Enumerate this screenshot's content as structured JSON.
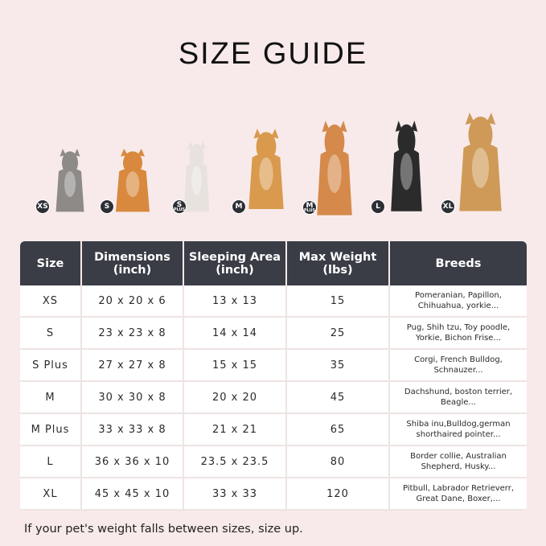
{
  "title": "SIZE GUIDE",
  "pets": [
    {
      "size": "XS",
      "badge": "XS",
      "plus": "",
      "animal": "cat",
      "color": "#8e8a88"
    },
    {
      "size": "S",
      "badge": "S",
      "plus": "",
      "animal": "pomeranian",
      "color": "#d8893d"
    },
    {
      "size": "S Plus",
      "badge": "S",
      "plus": "PLUS",
      "animal": "french-bulldog",
      "color": "#e8e2de"
    },
    {
      "size": "M",
      "badge": "M",
      "plus": "",
      "animal": "corgi",
      "color": "#d99a4e"
    },
    {
      "size": "M Plus",
      "badge": "M",
      "plus": "PLUS",
      "animal": "shiba-inu",
      "color": "#d5894a"
    },
    {
      "size": "L",
      "badge": "L",
      "plus": "",
      "animal": "border-collie",
      "color": "#2b2b2b"
    },
    {
      "size": "XL",
      "badge": "XL",
      "plus": "",
      "animal": "golden-retriever",
      "color": "#cf9a57"
    }
  ],
  "table": {
    "headers": [
      [
        "Size",
        ""
      ],
      [
        "Dimensions",
        "(inch)"
      ],
      [
        "Sleeping Area",
        "(inch)"
      ],
      [
        "Max Weight",
        "(lbs)"
      ],
      [
        "Breeds",
        ""
      ]
    ],
    "rows": [
      [
        "XS",
        "20 x 20 x 6",
        "13 x 13",
        "15",
        "Pomeranian, Papillon,",
        "Chihuahua, yorkie..."
      ],
      [
        "S",
        "23 x 23 x 8",
        "14 x 14",
        "25",
        "Pug, Shih tzu, Toy poodle,",
        "Yorkie, Bichon Frise..."
      ],
      [
        "S Plus",
        "27 x 27 x 8",
        "15 x 15",
        "35",
        "Corgi, French Bulldog,",
        "Schnauzer..."
      ],
      [
        "M",
        "30 x 30 x 8",
        "20 x 20",
        "45",
        "Dachshund, boston terrier,",
        "Beagle..."
      ],
      [
        "M Plus",
        "33 x 33 x 8",
        "21 x 21",
        "65",
        "Shiba inu,Bulldog,german",
        "shorthaired pointer..."
      ],
      [
        "L",
        "36 x 36 x 10",
        "23.5 x 23.5",
        "80",
        "Border collie, Australian",
        "Shepherd, Husky..."
      ],
      [
        "XL",
        "45 x 45 x 10",
        "33 x 33",
        "120",
        "Pitbull, Labrador Retrieverr,",
        "Great Dane, Boxer,..."
      ]
    ]
  },
  "note": "If your pet's weight falls between sizes, size up."
}
